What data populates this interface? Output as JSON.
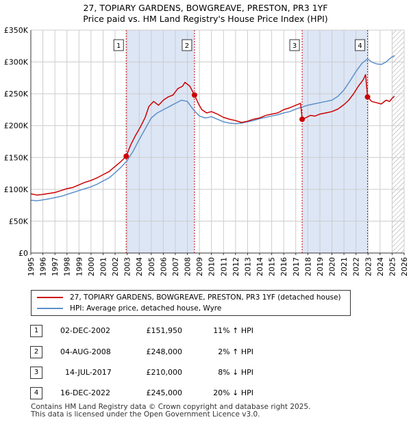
{
  "title": {
    "line1": "27, TOPIARY GARDENS, BOWGREAVE, PRESTON, PR3 1YF",
    "line2": "Price paid vs. HM Land Registry's House Price Index (HPI)"
  },
  "colors": {
    "property": "#cc0000",
    "hpi": "#5b8fc9",
    "shade": "#dde6f5",
    "hatch": "#999999",
    "grid": "#cccccc"
  },
  "chart_data": {
    "type": "line",
    "title": "27, TOPIARY GARDENS, BOWGREAVE, PRESTON, PR3 1YF",
    "xlim": [
      1995,
      2026
    ],
    "ylim": [
      0,
      350000
    ],
    "x_ticks": [
      "1995",
      "1996",
      "1997",
      "1998",
      "1999",
      "2000",
      "2001",
      "2002",
      "2003",
      "2004",
      "2005",
      "2006",
      "2007",
      "2008",
      "2009",
      "2010",
      "2011",
      "2012",
      "2013",
      "2014",
      "2015",
      "2016",
      "2017",
      "2018",
      "2019",
      "2020",
      "2021",
      "2022",
      "2023",
      "2024",
      "2025",
      "2026"
    ],
    "y_ticks": [
      {
        "value": 0,
        "label": "£0"
      },
      {
        "value": 50000,
        "label": "£50K"
      },
      {
        "value": 100000,
        "label": "£100K"
      },
      {
        "value": 150000,
        "label": "£150K"
      },
      {
        "value": 200000,
        "label": "£200K"
      },
      {
        "value": 250000,
        "label": "£250K"
      },
      {
        "value": 300000,
        "label": "£300K"
      },
      {
        "value": 350000,
        "label": "£350K"
      }
    ],
    "shaded_ranges": [
      [
        2002.92,
        2008.59
      ],
      [
        2017.53,
        2022.96
      ]
    ],
    "hatched_from": 2025.0,
    "series": [
      {
        "name": "27, TOPIARY GARDENS, BOWGREAVE, PRESTON, PR3 1YF (detached house)",
        "x": [
          1995,
          1995.5,
          1996,
          1996.5,
          1997,
          1997.5,
          1998,
          1998.5,
          1999,
          1999.5,
          2000,
          2000.5,
          2001,
          2001.5,
          2002,
          2002.5,
          2002.92,
          2003.3,
          2003.7,
          2004.1,
          2004.5,
          2004.8,
          2005.2,
          2005.6,
          2006,
          2006.4,
          2006.8,
          2007.2,
          2007.6,
          2007.8,
          2008.2,
          2008.59,
          2008.9,
          2009.2,
          2009.6,
          2010,
          2010.5,
          2011,
          2011.5,
          2012,
          2012.5,
          2013,
          2013.5,
          2014,
          2014.5,
          2015,
          2015.5,
          2016,
          2016.5,
          2017,
          2017.4,
          2017.53,
          2017.8,
          2018.2,
          2018.6,
          2019,
          2019.5,
          2020,
          2020.5,
          2021,
          2021.4,
          2021.8,
          2022.2,
          2022.6,
          2022.8,
          2022.96,
          2023.3,
          2023.7,
          2024.1,
          2024.5,
          2024.8,
          2025.0,
          2025.2
        ],
        "values": [
          93000,
          91000,
          92000,
          93500,
          95000,
          98000,
          101000,
          103000,
          107000,
          111000,
          114000,
          118000,
          123000,
          128000,
          136000,
          144000,
          151950,
          170000,
          185000,
          198000,
          213000,
          230000,
          238000,
          232000,
          240000,
          245000,
          248000,
          258000,
          262000,
          268000,
          262000,
          248000,
          235000,
          225000,
          220000,
          222000,
          218000,
          213000,
          210000,
          208000,
          205000,
          207000,
          210000,
          212000,
          216000,
          218000,
          220000,
          225000,
          228000,
          232000,
          235000,
          210000,
          212000,
          216000,
          215000,
          218000,
          220000,
          222000,
          226000,
          233000,
          240000,
          250000,
          262000,
          272000,
          280000,
          245000,
          238000,
          236000,
          234000,
          240000,
          238000,
          243000,
          246000
        ]
      },
      {
        "name": "HPI: Average price, detached house, Wyre",
        "x": [
          1995,
          1995.5,
          1996,
          1996.5,
          1997,
          1997.5,
          1998,
          1998.5,
          1999,
          1999.5,
          2000,
          2000.5,
          2001,
          2001.5,
          2002,
          2002.5,
          2003,
          2003.5,
          2004,
          2004.5,
          2005,
          2005.5,
          2006,
          2006.5,
          2007,
          2007.5,
          2008,
          2008.5,
          2009,
          2009.5,
          2010,
          2010.5,
          2011,
          2011.5,
          2012,
          2012.5,
          2013,
          2013.5,
          2014,
          2014.5,
          2015,
          2015.5,
          2016,
          2016.5,
          2017,
          2017.5,
          2018,
          2018.5,
          2019,
          2019.5,
          2020,
          2020.5,
          2021,
          2021.5,
          2022,
          2022.5,
          2022.96,
          2023.3,
          2023.7,
          2024.1,
          2024.5,
          2024.8,
          2025.0,
          2025.2
        ],
        "values": [
          83000,
          82000,
          83500,
          85000,
          87000,
          89000,
          92000,
          95000,
          98000,
          101000,
          104000,
          108000,
          113000,
          118000,
          126000,
          135000,
          145000,
          160000,
          178000,
          195000,
          212000,
          220000,
          225000,
          230000,
          235000,
          240000,
          238000,
          225000,
          215000,
          212000,
          214000,
          210000,
          206000,
          204000,
          203000,
          204000,
          206000,
          208000,
          211000,
          213000,
          215000,
          217000,
          220000,
          222000,
          226000,
          229000,
          232000,
          234000,
          236000,
          238000,
          240000,
          246000,
          256000,
          270000,
          285000,
          298000,
          305000,
          300000,
          297000,
          296000,
          300000,
          305000,
          308000,
          310000
        ]
      }
    ],
    "markers": [
      {
        "label": "1",
        "x": 2002.92,
        "value": 151950
      },
      {
        "label": "2",
        "x": 2008.59,
        "value": 248000
      },
      {
        "label": "3",
        "x": 2017.53,
        "value": 210000
      },
      {
        "label": "4",
        "x": 2022.96,
        "value": 245000
      }
    ]
  },
  "legend": {
    "property_label": "27, TOPIARY GARDENS, BOWGREAVE, PRESTON, PR3 1YF (detached house)",
    "hpi_label": "HPI: Average price, detached house, Wyre"
  },
  "transactions": [
    {
      "num": "1",
      "date": "02-DEC-2002",
      "price": "£151,950",
      "hpi": "11% ↑ HPI"
    },
    {
      "num": "2",
      "date": "04-AUG-2008",
      "price": "£248,000",
      "hpi": "2% ↑ HPI"
    },
    {
      "num": "3",
      "date": "14-JUL-2017",
      "price": "£210,000",
      "hpi": "8% ↓ HPI"
    },
    {
      "num": "4",
      "date": "16-DEC-2022",
      "price": "£245,000",
      "hpi": "20% ↓ HPI"
    }
  ],
  "footer": {
    "line1": "Contains HM Land Registry data © Crown copyright and database right 2025.",
    "line2": "This data is licensed under the Open Government Licence v3.0."
  }
}
